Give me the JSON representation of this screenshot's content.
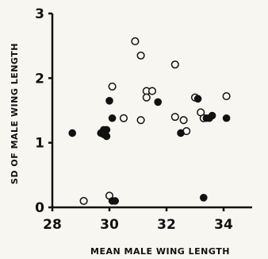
{
  "chart_data": {
    "type": "scatter",
    "title": "",
    "xlabel": "MEAN MALE WING LENGTH",
    "ylabel": "SD OF MALE WING LENGTH",
    "xlim": [
      28,
      35
    ],
    "ylim": [
      0,
      3
    ],
    "x_ticks": [
      "28",
      "30",
      "32",
      "34"
    ],
    "y_ticks": [
      "0",
      "1",
      "2",
      "3"
    ],
    "x_tick_values": [
      28,
      30,
      32,
      34
    ],
    "y_tick_values": [
      0,
      1,
      2,
      3
    ],
    "grid": false,
    "legend": "none",
    "series": [
      {
        "marker": "open-circle",
        "points": [
          {
            "x": 29.1,
            "y": 0.1
          },
          {
            "x": 30.0,
            "y": 0.18
          },
          {
            "x": 30.1,
            "y": 1.87
          },
          {
            "x": 30.5,
            "y": 1.38
          },
          {
            "x": 30.9,
            "y": 2.57
          },
          {
            "x": 31.1,
            "y": 2.35
          },
          {
            "x": 31.1,
            "y": 1.35
          },
          {
            "x": 31.3,
            "y": 1.8
          },
          {
            "x": 31.3,
            "y": 1.7
          },
          {
            "x": 31.5,
            "y": 1.8
          },
          {
            "x": 32.3,
            "y": 2.21
          },
          {
            "x": 32.3,
            "y": 1.4
          },
          {
            "x": 32.6,
            "y": 1.35
          },
          {
            "x": 32.7,
            "y": 1.18
          },
          {
            "x": 33.0,
            "y": 1.7
          },
          {
            "x": 33.2,
            "y": 1.47
          },
          {
            "x": 33.3,
            "y": 1.38
          },
          {
            "x": 34.1,
            "y": 1.72
          }
        ]
      },
      {
        "marker": "filled-circle",
        "points": [
          {
            "x": 28.7,
            "y": 1.15
          },
          {
            "x": 29.7,
            "y": 1.15
          },
          {
            "x": 29.8,
            "y": 1.2
          },
          {
            "x": 29.9,
            "y": 1.2
          },
          {
            "x": 29.9,
            "y": 1.1
          },
          {
            "x": 29.8,
            "y": 1.13
          },
          {
            "x": 30.0,
            "y": 1.65
          },
          {
            "x": 30.1,
            "y": 1.38
          },
          {
            "x": 30.1,
            "y": 0.1
          },
          {
            "x": 30.2,
            "y": 0.1
          },
          {
            "x": 31.7,
            "y": 1.63
          },
          {
            "x": 32.5,
            "y": 1.15
          },
          {
            "x": 33.1,
            "y": 1.68
          },
          {
            "x": 33.3,
            "y": 0.15
          },
          {
            "x": 33.4,
            "y": 1.38
          },
          {
            "x": 33.5,
            "y": 1.38
          },
          {
            "x": 33.6,
            "y": 1.42
          },
          {
            "x": 34.1,
            "y": 1.38
          }
        ]
      }
    ]
  }
}
